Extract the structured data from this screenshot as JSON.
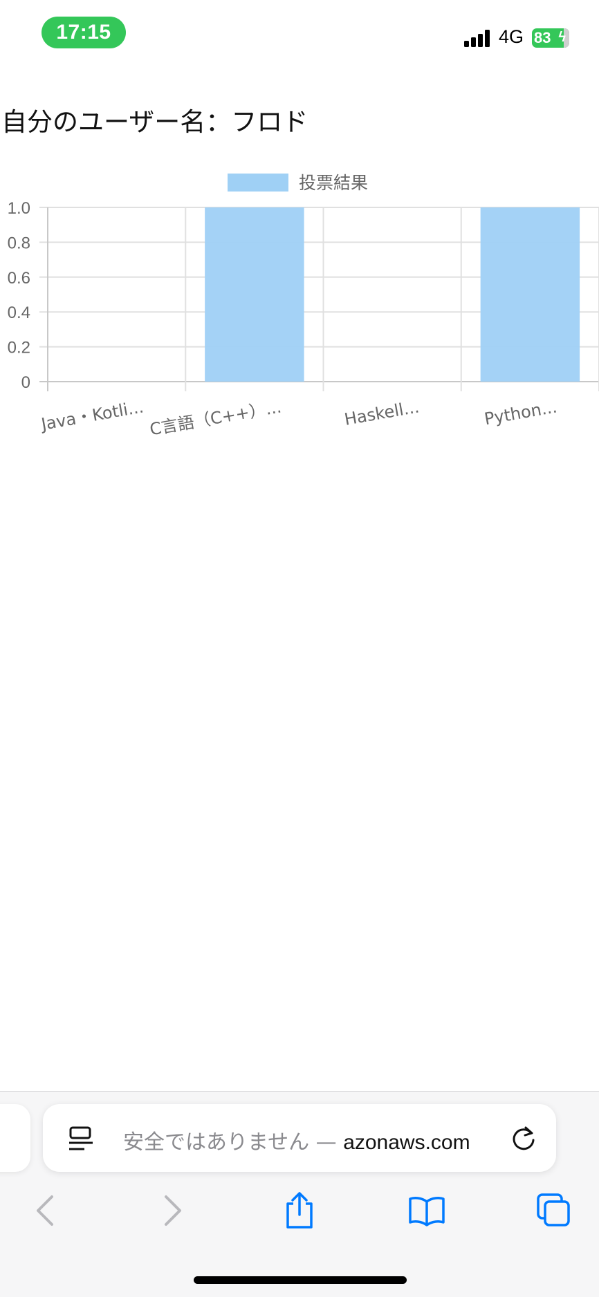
{
  "status_bar": {
    "time": "17:15",
    "network": "4G",
    "battery": "83",
    "accent_color": "#34c759",
    "signal_icon": "cellular-signal-icon",
    "battery_icon": "charging-battery-icon"
  },
  "page": {
    "username_line": "自分のユーザー名：フロド"
  },
  "chart_data": {
    "type": "bar",
    "legend": [
      "投票結果"
    ],
    "legend_position": "top-center",
    "categories": [
      "Java・Kotli...",
      "C言語（C++）...",
      "Haskell...",
      "Python..."
    ],
    "series": [
      {
        "name": "投票結果",
        "values": [
          0,
          1,
          0,
          1
        ],
        "color": "#9fd0f5"
      }
    ],
    "y_ticks": [
      "1.0",
      "0.8",
      "0.6",
      "0.4",
      "0.2",
      "0"
    ],
    "ylim": [
      0,
      1
    ],
    "grid": true
  },
  "browser": {
    "url_insecure_label": "安全ではありません — ",
    "url_domain": "azonaws.com",
    "reader_icon": "reader-view-icon",
    "reload_icon": "reload-icon",
    "toolbar_icons": [
      "back-icon",
      "forward-icon",
      "share-icon",
      "bookmarks-icon",
      "tabs-icon"
    ],
    "accent_color": "#007aff"
  }
}
